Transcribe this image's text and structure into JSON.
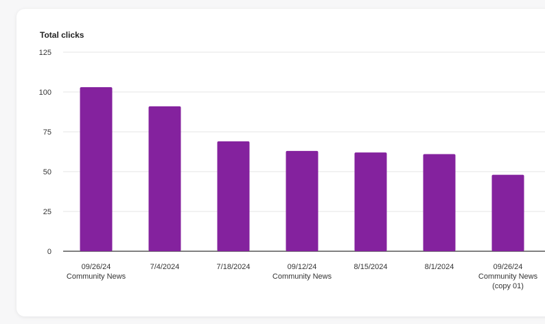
{
  "chart_data": {
    "type": "bar",
    "title": "Total clicks",
    "xlabel": "",
    "ylabel": "",
    "ylim": [
      0,
      125
    ],
    "yticks": [
      0,
      25,
      50,
      75,
      100,
      125
    ],
    "grid": true,
    "categories": [
      [
        "09/26/24",
        "Community News"
      ],
      [
        "7/4/2024"
      ],
      [
        "7/18/2024"
      ],
      [
        "09/12/24",
        "Community News"
      ],
      [
        "8/15/2024"
      ],
      [
        "8/1/2024"
      ],
      [
        "09/26/24",
        "Community News",
        "(copy 01)"
      ]
    ],
    "values": [
      103,
      91,
      69,
      63,
      62,
      61,
      48
    ],
    "colors": {
      "bar": "#84229e",
      "grid": "#e6e6e6",
      "axis": "#333333"
    }
  }
}
